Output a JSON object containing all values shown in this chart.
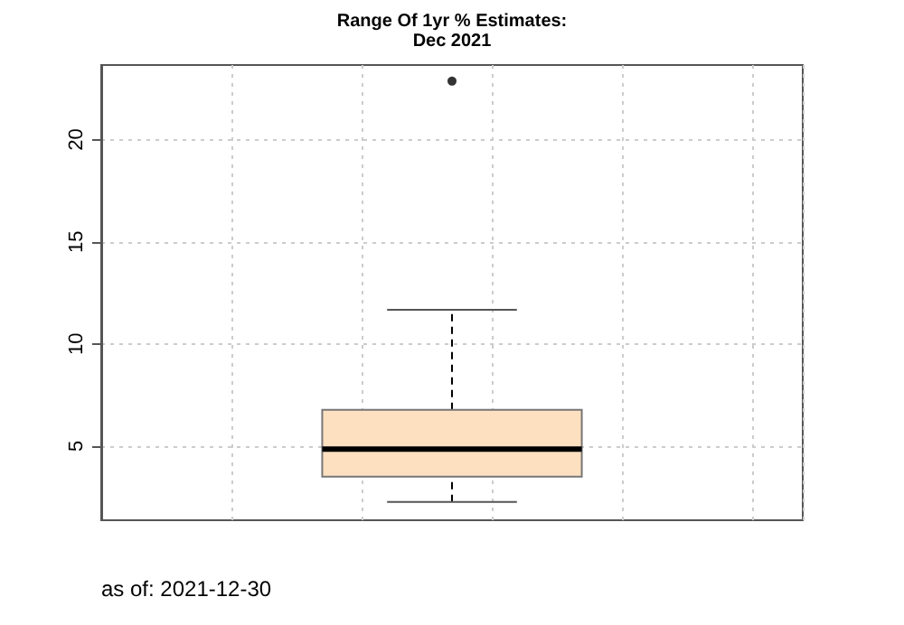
{
  "chart_data": {
    "type": "box",
    "title": "Range Of 1yr % Estimates:",
    "subtitle": "Dec 2021",
    "categories": [
      null
    ],
    "boxes": [
      {
        "low": 2.26,
        "q1": 3.5,
        "median": 4.85,
        "q3": 6.77,
        "high": 11.67,
        "outliers": [
          22.86
        ]
      }
    ],
    "color": "#fde0c0",
    "ylim": [
      1.37,
      23.65
    ],
    "yticks": [
      5,
      10,
      15,
      20
    ],
    "grid": true,
    "annotations": [
      "as of: 2021-12-30"
    ]
  }
}
